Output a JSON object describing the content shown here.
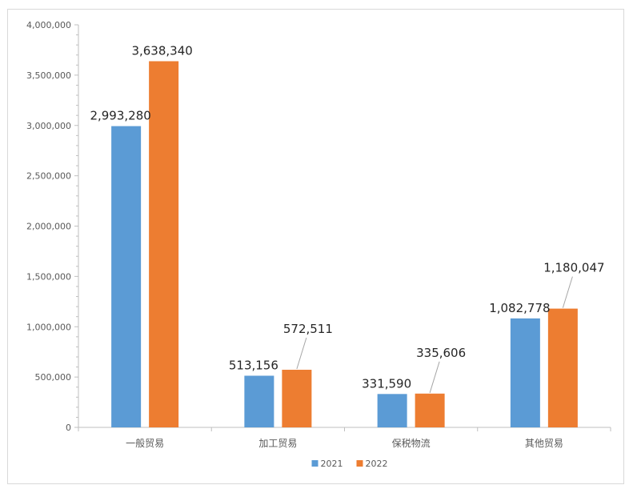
{
  "chart_data": {
    "type": "bar",
    "title": "",
    "xlabel": "",
    "ylabel": "",
    "categories": [
      "一般贸易",
      "加工贸易",
      "保税物流",
      "其他贸易"
    ],
    "series": [
      {
        "name": "2021",
        "color": "#5b9bd5",
        "values": [
          2993280,
          513156,
          331590,
          1082778
        ],
        "labels": [
          "2,993,280",
          "513,156",
          "331,590",
          "1,082,778"
        ]
      },
      {
        "name": "2022",
        "color": "#ed7d31",
        "values": [
          3638340,
          572511,
          335606,
          1180047
        ],
        "labels": [
          "3,638,340",
          "572,511",
          "335,606",
          "1,180,047"
        ]
      }
    ],
    "ylim": [
      0,
      4000000
    ],
    "y_ticks": [
      0,
      500000,
      1000000,
      1500000,
      2000000,
      2500000,
      3000000,
      3500000,
      4000000
    ],
    "y_tick_labels": [
      "0",
      "500,000",
      "1,000,000",
      "1,500,000",
      "2,000,000",
      "2,500,000",
      "3,000,000",
      "3,500,000",
      "4,000,000"
    ],
    "grid": false,
    "legend_position": "bottom",
    "axis_color": "#bfbfbf"
  }
}
